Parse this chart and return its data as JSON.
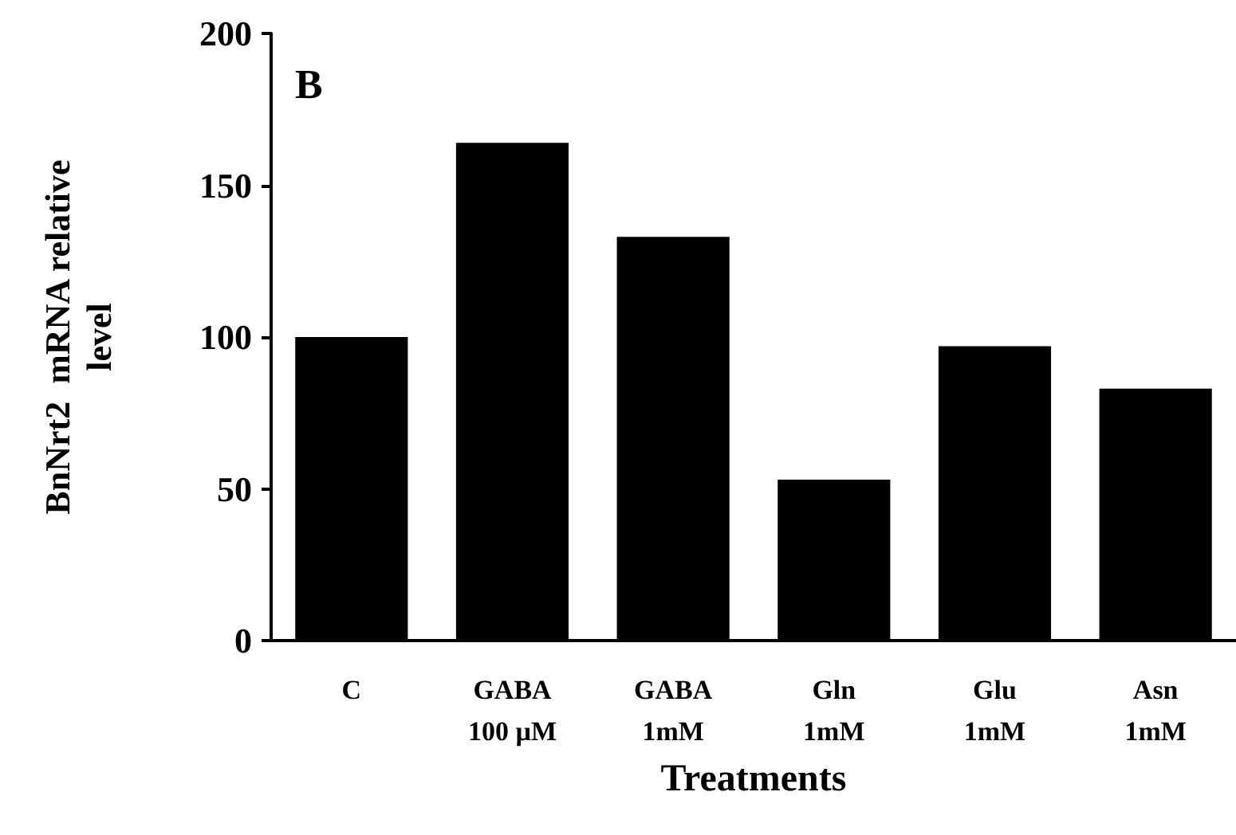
{
  "chart_data": {
    "type": "bar",
    "xlabel": "Treatments",
    "ylabel": "BnNrt2  mRNA relative\nlevel",
    "categories": [
      "C",
      "GABA\n100 µM",
      "GABA\n1mM",
      "Gln\n1mM",
      "Glu\n1mM",
      "Asn\n1mM"
    ],
    "values": [
      100,
      164,
      133,
      53,
      97,
      83
    ],
    "color": "#000000",
    "ylim": [
      0,
      200
    ],
    "yticks": [
      0,
      50,
      100,
      150,
      200
    ],
    "grid": false,
    "annotations": [
      "B"
    ]
  }
}
